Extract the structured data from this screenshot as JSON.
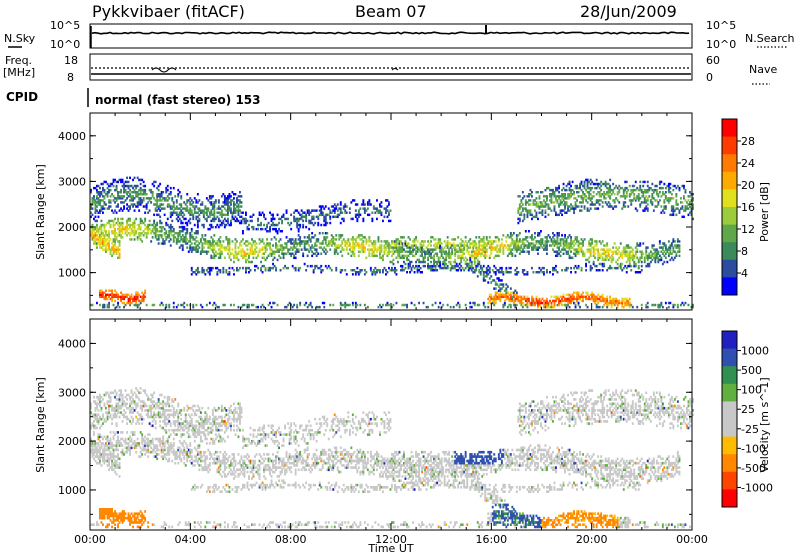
{
  "header": {
    "station": "Pykkvibaer (fitACF)",
    "beam": "Beam 07",
    "date": "28/Jun/2009"
  },
  "noise_panel": {
    "left_label": "N.Sky",
    "right_label": "N.Search",
    "left_ticks": [
      "10^5",
      "10^0"
    ],
    "right_ticks": [
      "10^5",
      "10^0"
    ]
  },
  "freq_panel": {
    "left_label_1": "Freq.",
    "left_label_2": "[MHz]",
    "right_label": "Nave",
    "left_ticks": [
      "18",
      "8"
    ],
    "right_ticks": [
      "60",
      "0"
    ]
  },
  "cpid": {
    "label": "CPID",
    "text": "normal (fast stereo) 153"
  },
  "colors": {
    "power": [
      "#0000ff",
      "#2c4ca0",
      "#3a8a5a",
      "#5fa84a",
      "#9ccc3c",
      "#e0e020",
      "#ffaa00",
      "#ff7a00",
      "#ff3c00",
      "#ff0000"
    ],
    "velocity": [
      "#ff0000",
      "#ff4400",
      "#ff8800",
      "#ffbb00",
      "#c8c8c8",
      "#c8c8c8",
      "#60b040",
      "#309050",
      "#3050b0",
      "#2020c0"
    ]
  },
  "chart_data": [
    {
      "type": "heatmap",
      "title": "",
      "xlabel": "Time UT",
      "ylabel": "Slant Range [km]",
      "xlim": [
        0,
        24
      ],
      "ylim": [
        180,
        4500
      ],
      "x_ticks": [
        "00:00",
        "04:00",
        "08:00",
        "12:00",
        "16:00",
        "20:00",
        "00:00"
      ],
      "y_ticks": [
        "1000",
        "2000",
        "3000",
        "4000"
      ],
      "colorbar": {
        "label": "Power [dB]",
        "ticks": [
          "4",
          "8",
          "12",
          "16",
          "20",
          "24",
          "28"
        ],
        "range": [
          0,
          30
        ]
      }
    },
    {
      "type": "heatmap",
      "title": "",
      "xlabel": "Time UT",
      "ylabel": "Slant Range [km]",
      "xlim": [
        0,
        24
      ],
      "ylim": [
        180,
        4500
      ],
      "x_ticks": [
        "00:00",
        "04:00",
        "08:00",
        "12:00",
        "16:00",
        "20:00",
        "00:00"
      ],
      "y_ticks": [
        "1000",
        "2000",
        "3000",
        "4000"
      ],
      "colorbar": {
        "label": "Velocity [m s^-1]",
        "ticks": [
          "1000",
          "500",
          "100",
          "25",
          "-25",
          "-100",
          "-500",
          "-1000"
        ]
      }
    }
  ]
}
